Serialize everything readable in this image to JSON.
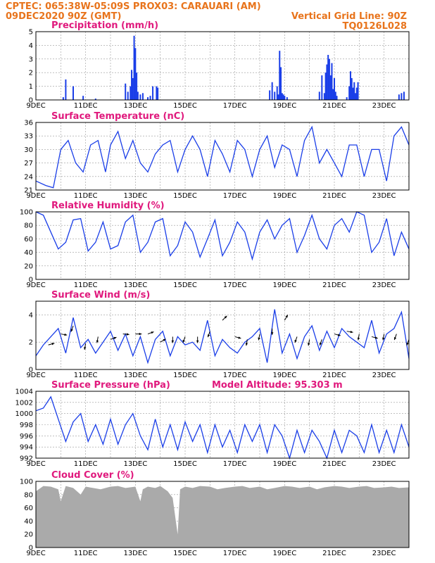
{
  "header": {
    "line1": "CPTEC:   065:38W-05:09S   PROX03: CARAUARI (AM)",
    "line2_left": "09DEC2020 90Z (GMT)",
    "line2_right": "Vertical Grid Line: 90Z",
    "line3_right": "TQ0126L028",
    "colors": {
      "header": "#e8741c",
      "panel_title": "#e0197d",
      "series": "#1a3ee8",
      "cloud": "#aaaaaa"
    }
  },
  "x_axis": {
    "ticks": [
      "9DEC",
      "11DEC",
      "13DEC",
      "15DEC",
      "17DEC",
      "19DEC",
      "21DEC",
      "23DEC"
    ],
    "range_days": [
      9,
      24
    ]
  },
  "chart_data": [
    {
      "id": "precip",
      "type": "bar",
      "title": "Precipitation (mm/h)",
      "ylim": [
        0,
        5
      ],
      "yticks": [
        "0",
        "1",
        "2",
        "3",
        "4",
        "5"
      ],
      "x": [
        10.1,
        10.2,
        10.5,
        10.9,
        11.4,
        12.6,
        12.7,
        12.8,
        12.85,
        12.9,
        12.95,
        13.0,
        13.05,
        13.1,
        13.2,
        13.3,
        13.5,
        13.6,
        13.7,
        13.85,
        13.9,
        18.4,
        18.5,
        18.6,
        18.7,
        18.75,
        18.8,
        18.85,
        18.9,
        18.95,
        19.0,
        19.1,
        20.4,
        20.5,
        20.6,
        20.65,
        20.7,
        20.75,
        20.8,
        20.85,
        20.9,
        20.95,
        21.0,
        21.05,
        21.1,
        21.5,
        21.6,
        21.65,
        21.7,
        21.75,
        21.8,
        21.85,
        21.9,
        21.95,
        23.6,
        23.7,
        23.8
      ],
      "values": [
        0.2,
        1.5,
        1.0,
        0.3,
        0.1,
        1.2,
        0.6,
        1.0,
        2.2,
        1.6,
        4.7,
        3.8,
        2.0,
        0.6,
        0.4,
        0.5,
        0.2,
        0.3,
        1.0,
        1.0,
        0.9,
        0.7,
        1.3,
        0.6,
        1.0,
        0.4,
        3.6,
        2.4,
        0.5,
        0.4,
        0.3,
        0.2,
        0.6,
        1.8,
        0.5,
        2.0,
        2.6,
        3.3,
        3.0,
        1.8,
        2.7,
        0.8,
        1.6,
        0.6,
        0.3,
        0.2,
        1.0,
        2.1,
        1.6,
        0.9,
        1.3,
        0.5,
        0.9,
        1.3,
        0.4,
        0.5,
        0.6
      ]
    },
    {
      "id": "temp",
      "type": "line",
      "title": "Surface Temperature (nC)",
      "ylim": [
        21,
        36
      ],
      "yticks": [
        "21",
        "24",
        "27",
        "30",
        "33",
        "36"
      ],
      "x": [
        9.0,
        9.4,
        9.7,
        10.0,
        10.3,
        10.6,
        10.9,
        11.2,
        11.5,
        11.8,
        12.0,
        12.3,
        12.6,
        12.9,
        13.2,
        13.5,
        13.8,
        14.1,
        14.4,
        14.7,
        15.0,
        15.3,
        15.6,
        15.9,
        16.2,
        16.5,
        16.8,
        17.1,
        17.4,
        17.7,
        18.0,
        18.3,
        18.6,
        18.9,
        19.2,
        19.5,
        19.8,
        20.1,
        20.4,
        20.7,
        21.0,
        21.3,
        21.6,
        21.9,
        22.2,
        22.5,
        22.8,
        23.1,
        23.4,
        23.7,
        24.0
      ],
      "values": [
        23,
        22,
        21.5,
        30,
        32,
        27,
        25,
        31,
        32,
        25,
        31,
        34,
        28,
        32,
        27,
        25,
        29,
        31,
        32,
        25,
        30,
        33,
        30,
        24,
        32,
        29,
        25,
        32,
        30,
        24,
        30,
        33,
        26,
        31,
        30,
        24,
        32,
        35,
        27,
        30,
        27,
        24,
        31,
        31,
        24,
        30,
        30,
        23,
        33,
        35,
        31
      ]
    },
    {
      "id": "rh",
      "type": "line",
      "title": "Relative Humidity (%)",
      "ylim": [
        0,
        100
      ],
      "yticks": [
        "0",
        "20",
        "40",
        "60",
        "80",
        "100"
      ],
      "x": [
        9.0,
        9.3,
        9.6,
        9.9,
        10.2,
        10.5,
        10.8,
        11.1,
        11.4,
        11.7,
        12.0,
        12.3,
        12.6,
        12.9,
        13.2,
        13.5,
        13.8,
        14.1,
        14.4,
        14.7,
        15.0,
        15.3,
        15.6,
        15.9,
        16.2,
        16.5,
        16.8,
        17.1,
        17.4,
        17.7,
        18.0,
        18.3,
        18.6,
        18.9,
        19.2,
        19.5,
        19.8,
        20.1,
        20.4,
        20.7,
        21.0,
        21.3,
        21.6,
        21.9,
        22.2,
        22.5,
        22.8,
        23.1,
        23.4,
        23.7,
        24.0
      ],
      "values": [
        100,
        95,
        70,
        45,
        55,
        88,
        90,
        42,
        55,
        85,
        45,
        50,
        85,
        95,
        40,
        55,
        85,
        90,
        35,
        50,
        85,
        70,
        33,
        60,
        88,
        35,
        55,
        85,
        70,
        30,
        70,
        88,
        60,
        80,
        90,
        40,
        65,
        95,
        60,
        45,
        80,
        90,
        70,
        100,
        95,
        40,
        55,
        90,
        35,
        70,
        45
      ]
    },
    {
      "id": "wind",
      "type": "line",
      "title": "Surface Wind (m/s)",
      "ylim": [
        0,
        5
      ],
      "yticks": [
        "0",
        "2",
        "4"
      ],
      "x": [
        9.0,
        9.3,
        9.6,
        9.9,
        10.2,
        10.5,
        10.8,
        11.1,
        11.4,
        11.7,
        12.0,
        12.3,
        12.6,
        12.9,
        13.2,
        13.5,
        13.8,
        14.1,
        14.4,
        14.7,
        15.0,
        15.3,
        15.6,
        15.9,
        16.2,
        16.5,
        16.8,
        17.1,
        17.4,
        17.7,
        18.0,
        18.3,
        18.6,
        18.9,
        19.2,
        19.5,
        19.8,
        20.1,
        20.4,
        20.7,
        21.0,
        21.3,
        21.6,
        21.9,
        22.2,
        22.5,
        22.8,
        23.1,
        23.4,
        23.7,
        24.0
      ],
      "values": [
        1.0,
        1.8,
        2.4,
        3.0,
        1.2,
        3.8,
        1.6,
        2.2,
        1.2,
        2.0,
        2.8,
        1.4,
        2.6,
        1.0,
        2.4,
        0.5,
        2.2,
        2.8,
        1.0,
        2.4,
        1.8,
        2.0,
        1.4,
        3.6,
        1.0,
        2.2,
        1.6,
        1.2,
        2.0,
        2.4,
        3.0,
        0.5,
        4.4,
        1.2,
        2.6,
        0.8,
        2.4,
        3.2,
        1.4,
        2.8,
        1.6,
        3.0,
        2.4,
        2.0,
        1.6,
        3.6,
        1.2,
        2.6,
        3.0,
        4.2,
        0.8
      ]
    },
    {
      "id": "pres",
      "type": "line",
      "title": "Surface Pressure (hPa)",
      "annotation": "Model Altitude: 95.303 m",
      "ylim": [
        992,
        1004
      ],
      "yticks": [
        "992",
        "994",
        "996",
        "998",
        "1000",
        "1002",
        "1004"
      ],
      "x": [
        9.0,
        9.3,
        9.6,
        9.9,
        10.2,
        10.5,
        10.8,
        11.1,
        11.4,
        11.7,
        12.0,
        12.3,
        12.6,
        12.9,
        13.2,
        13.5,
        13.8,
        14.1,
        14.4,
        14.7,
        15.0,
        15.3,
        15.6,
        15.9,
        16.2,
        16.5,
        16.8,
        17.1,
        17.4,
        17.7,
        18.0,
        18.3,
        18.6,
        18.9,
        19.2,
        19.5,
        19.8,
        20.1,
        20.4,
        20.7,
        21.0,
        21.3,
        21.6,
        21.9,
        22.2,
        22.5,
        22.8,
        23.1,
        23.4,
        23.7,
        24.0
      ],
      "values": [
        1000.5,
        1001,
        1003,
        999,
        995,
        998.5,
        1000,
        995,
        998,
        994.5,
        999,
        994.5,
        998,
        1000,
        996,
        993.5,
        999,
        994,
        998,
        993.5,
        998.5,
        995,
        998,
        993,
        998,
        994,
        997,
        993,
        998,
        995,
        998,
        993,
        998,
        996,
        992,
        997,
        993,
        997,
        995,
        992,
        997,
        993,
        997,
        996,
        993,
        998,
        993,
        997,
        993,
        998,
        994
      ]
    },
    {
      "id": "cloud",
      "type": "area",
      "title": "Cloud Cover (%)",
      "ylim": [
        0,
        100
      ],
      "yticks": [
        "0",
        "20",
        "40",
        "60",
        "80",
        "100"
      ],
      "x": [
        9.0,
        9.3,
        9.6,
        9.9,
        10.0,
        10.2,
        10.5,
        10.8,
        11.0,
        11.3,
        11.6,
        12.0,
        12.3,
        12.6,
        13.0,
        13.2,
        13.3,
        13.5,
        13.8,
        14.0,
        14.3,
        14.5,
        14.7,
        14.8,
        15.0,
        15.3,
        15.6,
        16.0,
        16.3,
        16.6,
        17.0,
        17.3,
        17.6,
        18.0,
        18.3,
        18.6,
        19.0,
        19.3,
        19.6,
        20.0,
        20.3,
        20.6,
        21.0,
        21.3,
        21.6,
        22.0,
        22.3,
        22.6,
        23.0,
        23.3,
        23.6,
        24.0
      ],
      "values": [
        85,
        93,
        92,
        88,
        70,
        93,
        90,
        80,
        92,
        90,
        88,
        92,
        93,
        90,
        92,
        70,
        88,
        92,
        90,
        93,
        85,
        75,
        20,
        88,
        92,
        90,
        93,
        92,
        88,
        90,
        92,
        93,
        90,
        92,
        88,
        90,
        93,
        92,
        90,
        92,
        88,
        91,
        93,
        92,
        90,
        92,
        93,
        90,
        91,
        92,
        90,
        91
      ]
    }
  ],
  "wind_vectors": {
    "x": [
      9.5,
      10.0,
      10.5,
      11.0,
      11.5,
      12.0,
      12.5,
      13.0,
      13.5,
      14.0,
      14.5,
      15.0,
      15.5,
      16.0,
      16.5,
      17.0,
      17.5,
      18.0,
      18.5,
      19.0,
      19.5,
      20.0,
      20.5,
      21.0,
      21.5,
      22.0,
      22.5,
      23.0,
      23.5,
      24.0
    ],
    "speed": [
      1.8,
      2.6,
      3.2,
      1.9,
      2.4,
      2.2,
      2.6,
      2.6,
      2.6,
      2.0,
      2.4,
      2.4,
      2.4,
      2.8,
      3.6,
      2.4,
      2.2,
      2.6,
      3.0,
      3.6,
      2.4,
      2.2,
      2.2,
      2.6,
      2.8,
      2.6,
      2.4,
      2.6,
      2.6,
      2.2
    ],
    "angle_deg": [
      15,
      -10,
      -110,
      -100,
      -100,
      20,
      -5,
      0,
      20,
      30,
      -90,
      -110,
      -90,
      -110,
      45,
      -15,
      -100,
      -100,
      -90,
      60,
      -110,
      -100,
      -110,
      -15,
      -10,
      -100,
      -15,
      -100,
      -110,
      -110
    ]
  }
}
